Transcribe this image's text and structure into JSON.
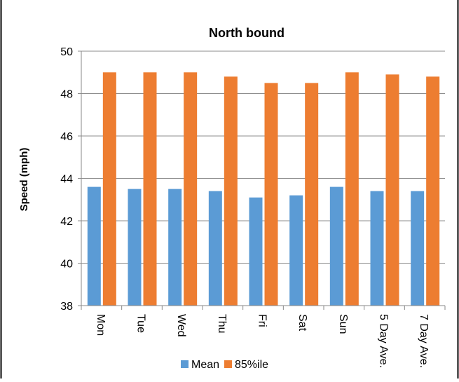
{
  "chart_data": {
    "type": "bar",
    "title": "North bound",
    "ylabel": "Speed (mph)",
    "xlabel": "",
    "ylim": [
      38,
      50
    ],
    "yticks": [
      38,
      40,
      42,
      44,
      46,
      48,
      50
    ],
    "grid": true,
    "legend_position": "bottom",
    "categories": [
      "Mon",
      "Tue",
      "Wed",
      "Thu",
      "Fri",
      "Sat",
      "Sun",
      "5 Day Ave.",
      "7 Day Ave."
    ],
    "series": [
      {
        "name": "Mean",
        "color": "#5B9BD5",
        "values": [
          43.6,
          43.5,
          43.5,
          43.4,
          43.1,
          43.2,
          43.6,
          43.4,
          43.4
        ]
      },
      {
        "name": "85%ile",
        "color": "#ED7D31",
        "values": [
          49.0,
          49.0,
          49.0,
          48.8,
          48.5,
          48.5,
          49.0,
          48.9,
          48.8
        ]
      }
    ]
  }
}
